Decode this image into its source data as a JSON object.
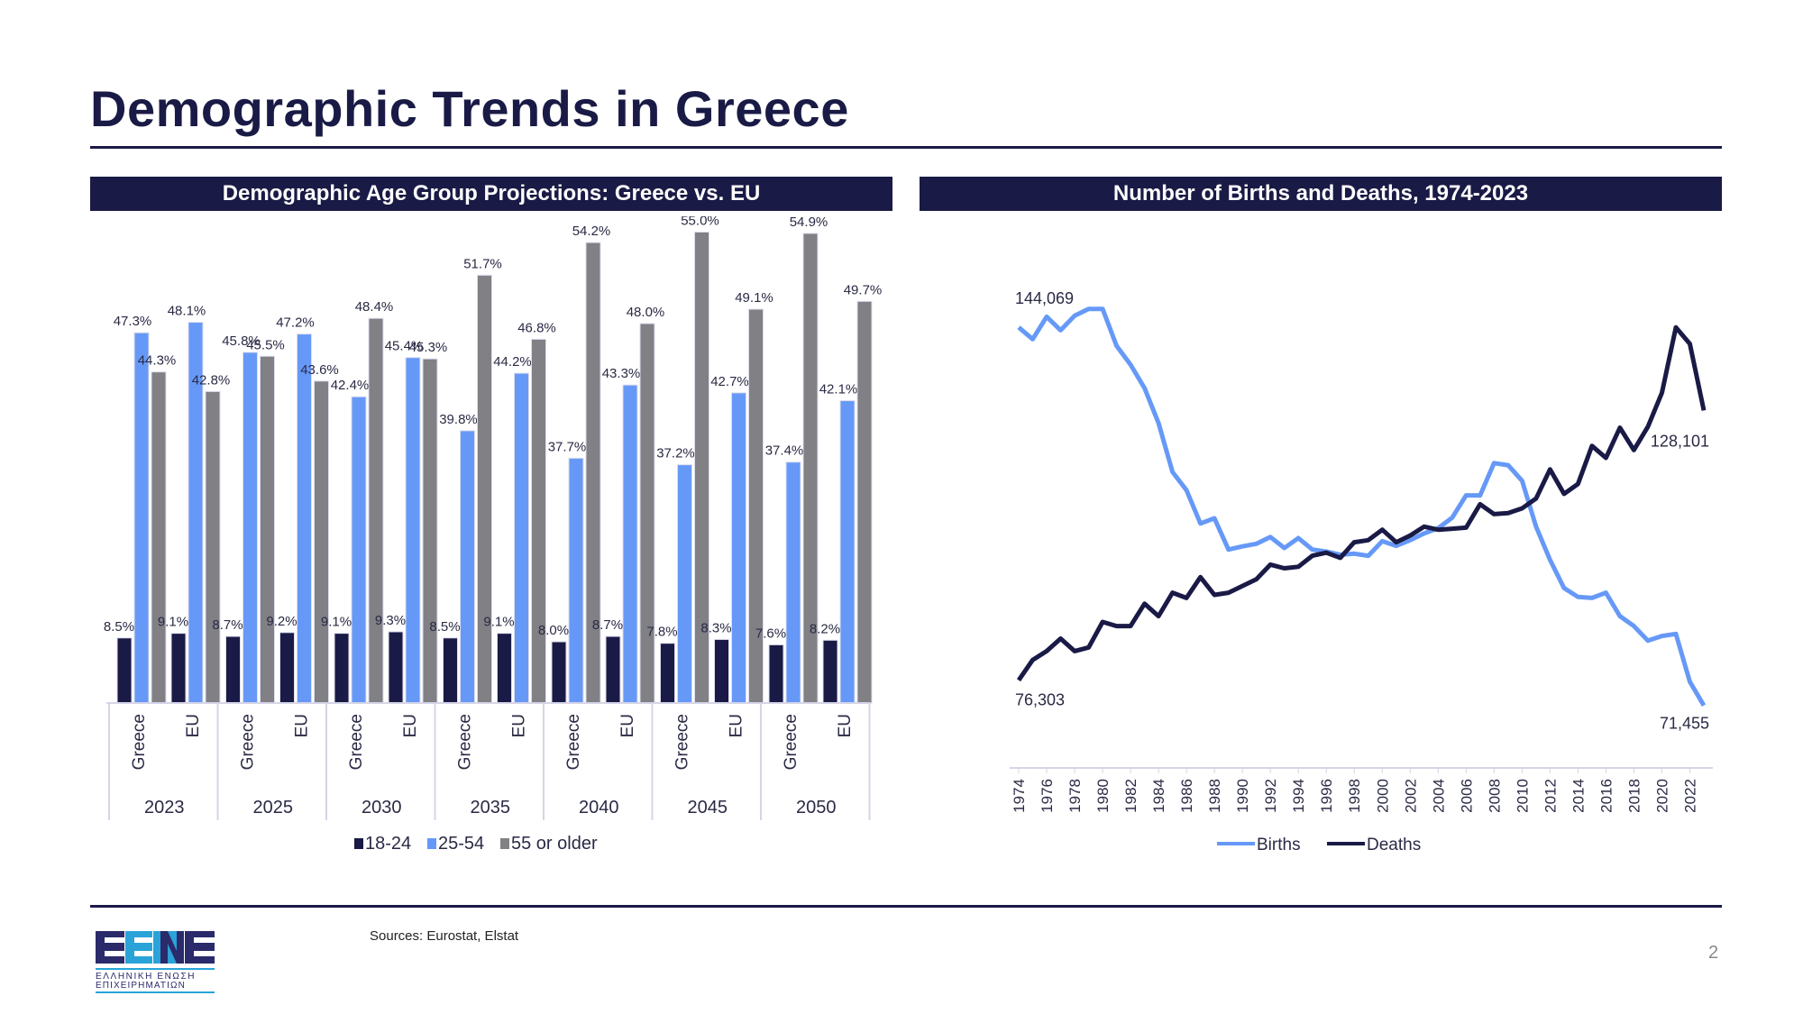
{
  "page": {
    "title": "Demographic Trends in Greece",
    "sources": "Sources: Eurostat, Elstat",
    "page_number": "2",
    "logo": {
      "letters": "EENE",
      "line1": "ΕΛΛΗΝΙΚΗ ΕΝΩΣΗ",
      "line2": "ΕΠΙΧΕΙΡΗΜΑΤΙΩΝ",
      "dark": "#2b2a6b",
      "light": "#2aa3d8"
    }
  },
  "chart_data": [
    {
      "type": "bar",
      "title": "Demographic Age Group Projections: Greece vs. EU",
      "years": [
        "2023",
        "2025",
        "2030",
        "2035",
        "2040",
        "2045",
        "2050"
      ],
      "regions": [
        "Greece",
        "EU"
      ],
      "legend_position": "bottom",
      "grid": false,
      "series": [
        {
          "name": "18-24",
          "color": "#1a1a46",
          "values": [
            8.5,
            9.1,
            8.7,
            9.2,
            9.1,
            9.3,
            8.5,
            9.1,
            8.0,
            8.7,
            7.8,
            8.3,
            7.6,
            8.2
          ],
          "labels": [
            "8.5%",
            "9.1%",
            "8.7%",
            "9.2%",
            "9.1%",
            "9.3%",
            "8.5%",
            "9.1%",
            "8.0%",
            "8.7%",
            "7.8%",
            "8.3%",
            "7.6%",
            "8.2%"
          ]
        },
        {
          "name": "25-54",
          "color": "#6699f7",
          "values": [
            47.3,
            48.1,
            45.8,
            47.2,
            42.4,
            45.4,
            39.8,
            44.2,
            37.7,
            43.3,
            37.2,
            42.7,
            37.4,
            42.1
          ],
          "labels": [
            "47.3%",
            "48.1%",
            "45.8%",
            "47.2%",
            "42.4%",
            "45.4%",
            "39.8%",
            "44.2%",
            "37.7%",
            "43.3%",
            "37.2%",
            "42.7%",
            "37.4%",
            "42.1%"
          ]
        },
        {
          "name": "55 or older",
          "color": "#808085",
          "values": [
            44.3,
            42.8,
            45.5,
            43.6,
            48.4,
            45.3,
            51.7,
            46.8,
            54.2,
            48.0,
            55.0,
            49.1,
            54.9,
            49.7
          ],
          "labels": [
            "44.3%",
            "42.8%",
            "45.5%",
            "43.6%",
            "48.4%",
            "45.3%",
            "51.7%",
            "46.8%",
            "54.2%",
            "48.0%",
            "55.0%",
            "49.1%",
            "54.9%",
            "49.7%"
          ]
        }
      ]
    },
    {
      "type": "line",
      "title": "Number of Births and Deaths, 1974-2023",
      "x_start": 1974,
      "x_end": 2023,
      "x_tick_labels": [
        "1974",
        "1976",
        "1978",
        "1980",
        "1982",
        "1984",
        "1986",
        "1988",
        "1990",
        "1992",
        "1994",
        "1996",
        "1998",
        "2000",
        "2002",
        "2004",
        "2006",
        "2008",
        "2010",
        "2012",
        "2014",
        "2016",
        "2018",
        "2020",
        "2022"
      ],
      "ylim": [
        65000,
        155000
      ],
      "legend_position": "bottom",
      "grid": false,
      "series": [
        {
          "name": "Births",
          "color": "#6699f7",
          "values": [
            144069,
            141800,
            146100,
            143500,
            146300,
            147600,
            147600,
            140500,
            136900,
            132400,
            125700,
            116300,
            112800,
            106400,
            107400,
            101400,
            102000,
            102500,
            103800,
            101700,
            103600,
            101400,
            101000,
            100400,
            100600,
            100200,
            103000,
            102100,
            103200,
            104500,
            105500,
            107500,
            111800,
            111800,
            118000,
            117600,
            114600,
            105800,
            99400,
            94000,
            92300,
            92100,
            93100,
            88600,
            86700,
            83900,
            84800,
            85200,
            76000,
            71455
          ],
          "annotations": [
            {
              "index": 0,
              "text": "144,069"
            },
            {
              "index": 49,
              "text": "71,455"
            }
          ]
        },
        {
          "name": "Deaths",
          "color": "#1a1a46",
          "values": [
            76303,
            80200,
            81900,
            84300,
            81900,
            82600,
            87500,
            86700,
            86700,
            91000,
            88600,
            93100,
            92100,
            96100,
            92700,
            93100,
            94400,
            95700,
            98500,
            97800,
            98100,
            100200,
            100800,
            99800,
            102800,
            103200,
            105200,
            102800,
            104100,
            105800,
            105200,
            105400,
            105600,
            110100,
            108200,
            108400,
            109300,
            111200,
            116800,
            112100,
            114000,
            121300,
            119000,
            124800,
            120500,
            125000,
            131500,
            144069,
            140900,
            128101
          ],
          "annotations": [
            {
              "index": 0,
              "text": "76,303"
            },
            {
              "index": 49,
              "text": "128,101"
            }
          ]
        }
      ]
    }
  ]
}
